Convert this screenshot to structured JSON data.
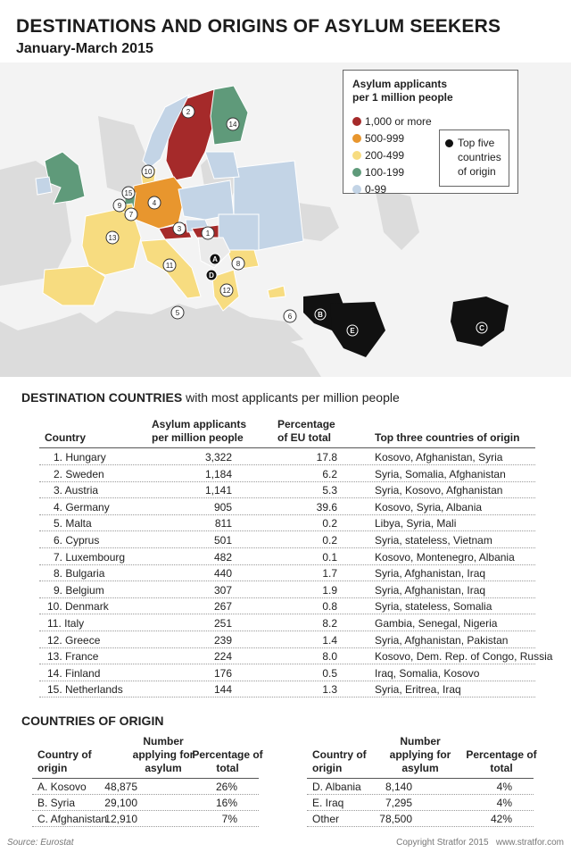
{
  "header": {
    "title": "DESTINATIONS AND ORIGINS OF ASYLUM SEEKERS",
    "subtitle": "January-March 2015"
  },
  "legend": {
    "title_line1": "Asylum applicants",
    "title_line2": "per 1 million people",
    "items": [
      {
        "label": "1,000 or more",
        "color": "#a52a2a"
      },
      {
        "label": "500-999",
        "color": "#e8962e"
      },
      {
        "label": "200-499",
        "color": "#f7dc80"
      },
      {
        "label": "100-199",
        "color": "#5f9a7a"
      },
      {
        "label": "0-99",
        "color": "#c3d4e6"
      }
    ],
    "origin_line1": "Top five",
    "origin_line2": "countries",
    "origin_line3": "of origin"
  },
  "map": {
    "rank_markers": [
      "1",
      "2",
      "3",
      "4",
      "5",
      "6",
      "7",
      "8",
      "9",
      "10",
      "11",
      "12",
      "13",
      "14",
      "15"
    ],
    "origin_markers": [
      "A",
      "B",
      "C",
      "D",
      "E"
    ]
  },
  "destination_section": {
    "title_bold": "DESTINATION COUNTRIES",
    "title_rest": "with most applicants per million people",
    "col_country": "Country",
    "col_applicants_1": "Asylum applicants",
    "col_applicants_2": "per million people",
    "col_pct_1": "Percentage",
    "col_pct_2": "of EU total",
    "col_top": "Top three countries of origin"
  },
  "origins_section": {
    "title": "COUNTRIES OF ORIGIN",
    "col_country_1": "Country of",
    "col_country_2": "origin",
    "col_number_1": "Number",
    "col_number_2": "applying for",
    "col_number_3": "asylum",
    "col_pct_1": "Percentage of",
    "col_pct_2": "total"
  },
  "chart_data": [
    {
      "type": "table",
      "title": "DESTINATION COUNTRIES with most applicants per million people",
      "columns": [
        "Country",
        "Asylum applicants per million people",
        "Percentage of EU total",
        "Top three countries of origin"
      ],
      "rows": [
        [
          "1. Hungary",
          "3,322",
          "17.8",
          "Kosovo, Afghanistan, Syria"
        ],
        [
          "2. Sweden",
          "1,184",
          "6.2",
          "Syria, Somalia, Afghanistan"
        ],
        [
          "3. Austria",
          "1,141",
          "5.3",
          "Syria, Kosovo, Afghanistan"
        ],
        [
          "4. Germany",
          "905",
          "39.6",
          "Kosovo, Syria, Albania"
        ],
        [
          "5. Malta",
          "811",
          "0.2",
          "Libya, Syria, Mali"
        ],
        [
          "6. Cyprus",
          "501",
          "0.2",
          "Syria, stateless, Vietnam"
        ],
        [
          "7. Luxembourg",
          "482",
          "0.1",
          "Kosovo, Montenegro, Albania"
        ],
        [
          "8. Bulgaria",
          "440",
          "1.7",
          "Syria, Afghanistan, Iraq"
        ],
        [
          "9. Belgium",
          "307",
          "1.9",
          "Syria, Afghanistan, Iraq"
        ],
        [
          "10. Denmark",
          "267",
          "0.8",
          "Syria, stateless, Somalia"
        ],
        [
          "11. Italy",
          "251",
          "8.2",
          "Gambia, Senegal, Nigeria"
        ],
        [
          "12. Greece",
          "239",
          "1.4",
          "Syria, Afghanistan, Pakistan"
        ],
        [
          "13. France",
          "224",
          "8.0",
          "Kosovo, Dem. Rep. of Congo, Russia"
        ],
        [
          "14. Finland",
          "176",
          "0.5",
          "Iraq, Somalia, Kosovo"
        ],
        [
          "15. Netherlands",
          "144",
          "1.3",
          "Syria, Eritrea, Iraq"
        ]
      ]
    },
    {
      "type": "table",
      "title": "COUNTRIES OF ORIGIN",
      "columns": [
        "Country of origin",
        "Number applying for asylum",
        "Percentage of total"
      ],
      "rows": [
        [
          "A. Kosovo",
          "48,875",
          "26%"
        ],
        [
          "B. Syria",
          "29,100",
          "16%"
        ],
        [
          "C. Afghanistan",
          "12,910",
          "7%"
        ],
        [
          "D. Albania",
          "8,140",
          "4%"
        ],
        [
          "E. Iraq",
          "7,295",
          "4%"
        ],
        [
          "Other",
          "78,500",
          "42%"
        ]
      ]
    }
  ],
  "footer": {
    "source": "Source: Eurostat",
    "copyright": "Copyright Stratfor 2015   www.stratfor.com"
  }
}
